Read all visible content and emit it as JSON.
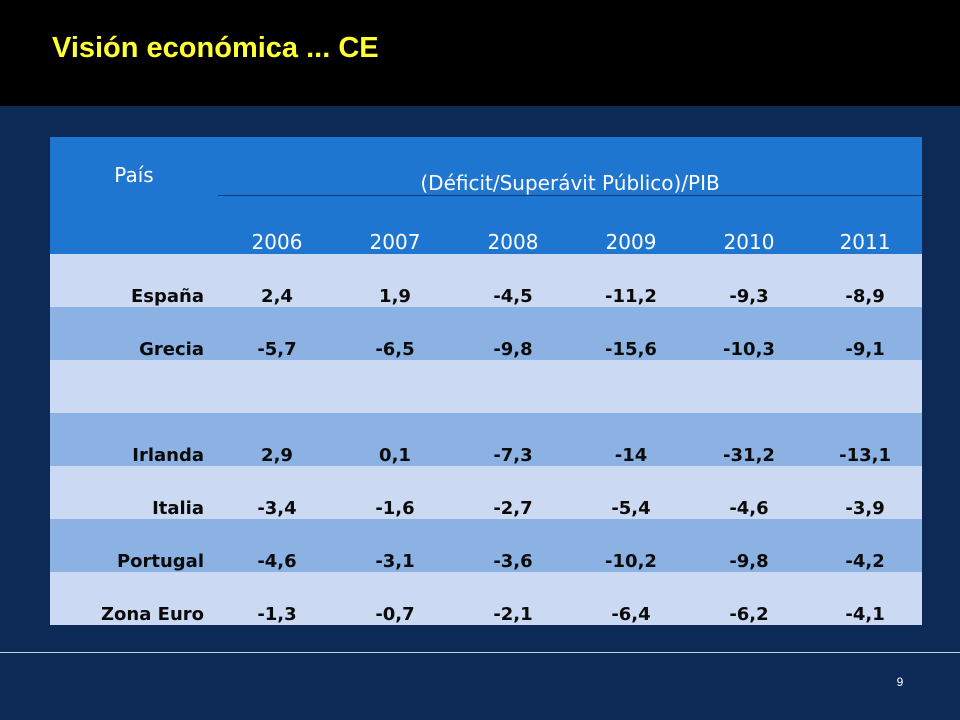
{
  "title": "Visión económica ... CE",
  "page_number": "9",
  "table": {
    "country_header": "País",
    "metric_header": "(Déficit/Superávit Público)/PIB",
    "years": [
      "2006",
      "2007",
      "2008",
      "2009",
      "2010",
      "2011"
    ],
    "rows": [
      {
        "country": "España",
        "values": [
          "2,4",
          "1,9",
          "-4,5",
          "-11,2",
          "-9,3",
          "-8,9"
        ]
      },
      {
        "country": "Grecia",
        "values": [
          "-5,7",
          "-6,5",
          "-9,8",
          "-15,6",
          "-10,3",
          "-9,1"
        ]
      },
      {
        "country": "",
        "values": [
          "",
          "",
          "",
          "",
          "",
          ""
        ]
      },
      {
        "country": "Irlanda",
        "values": [
          "2,9",
          "0,1",
          "-7,3",
          "-14",
          "-31,2",
          "-13,1"
        ]
      },
      {
        "country": "Italia",
        "values": [
          "-3,4",
          "-1,6",
          "-2,7",
          "-5,4",
          "-4,6",
          "-3,9"
        ]
      },
      {
        "country": "Portugal",
        "values": [
          "-4,6",
          "-3,1",
          "-3,6",
          "-10,2",
          "-9,8",
          "-4,2"
        ]
      },
      {
        "country": "Zona Euro",
        "values": [
          "-1,3",
          "-0,7",
          "-2,1",
          "-6,4",
          "-6,2",
          "-4,1"
        ]
      }
    ]
  },
  "colors": {
    "header_bg": "#1f76d1",
    "row_light": "#cbdaf2",
    "row_dark": "#8bb2e3",
    "title_color": "#ffff33",
    "slide_bg": "#0c2a55"
  }
}
